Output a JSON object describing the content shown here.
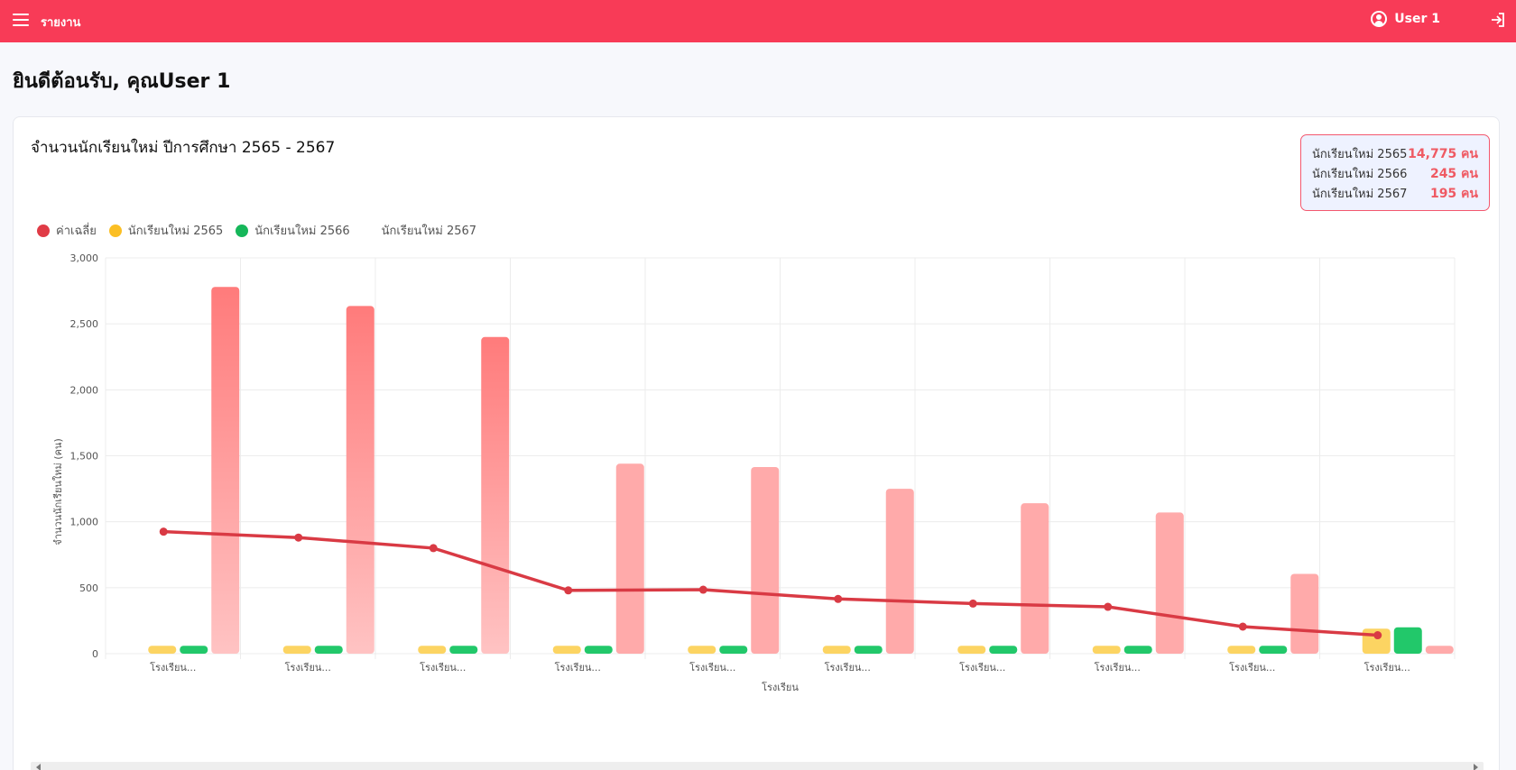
{
  "header": {
    "title": "รายงาน",
    "user_name": "User 1"
  },
  "welcome": "ยินดีต้อนรับ, คุณUser 1",
  "chart_card": {
    "title": "จำนวนนักเรียนใหม่ ปีการศึกษา 2565 - 2567",
    "summary": [
      {
        "label": "นักเรียนใหม่ 2565",
        "value": "14,775 คน"
      },
      {
        "label": "นักเรียนใหม่ 2566",
        "value": "245 คน"
      },
      {
        "label": "นักเรียนใหม่ 2567",
        "value": "195 คน"
      }
    ]
  },
  "colors": {
    "header": "#f83b57",
    "average": "#e03b46",
    "y2565": "#fbbf24",
    "y2566": "#16b75a",
    "y2567": "#ff7b7b"
  },
  "chart_data": {
    "type": "bar",
    "xlabel": "โรงเรียน",
    "ylabel": "จำนวนนักเรียนใหม่ (คน)",
    "ylim": [
      0,
      3000
    ],
    "yticks": [
      "0",
      "500",
      "1,000",
      "1,500",
      "2,000",
      "2,500",
      "3,000"
    ],
    "categories": [
      "โรงเรียน...",
      "โรงเรียน...",
      "โรงเรียน...",
      "โรงเรียน...",
      "โรงเรียน...",
      "โรงเรียน...",
      "โรงเรียน...",
      "โรงเรียน...",
      "โรงเรียน...",
      "โรงเรียน..."
    ],
    "legend": [
      "ค่าเฉลี่ย",
      "นักเรียนใหม่ 2565",
      "นักเรียนใหม่ 2566",
      "นักเรียนใหม่ 2567"
    ],
    "series": [
      {
        "name": "ค่าเฉลี่ย",
        "type": "line",
        "values": [
          925,
          880,
          800,
          480,
          485,
          415,
          380,
          355,
          205,
          140
        ]
      },
      {
        "name": "นักเรียนใหม่ 2565",
        "type": "bar",
        "values": [
          60,
          60,
          60,
          60,
          60,
          60,
          60,
          60,
          60,
          190
        ]
      },
      {
        "name": "นักเรียนใหม่ 2566",
        "type": "bar",
        "values": [
          60,
          60,
          60,
          60,
          60,
          60,
          60,
          60,
          60,
          200
        ]
      },
      {
        "name": "นักเรียนใหม่ 2567",
        "type": "bar",
        "values": [
          2780,
          2635,
          2400,
          1440,
          1415,
          1250,
          1140,
          1070,
          605,
          60
        ]
      }
    ]
  }
}
